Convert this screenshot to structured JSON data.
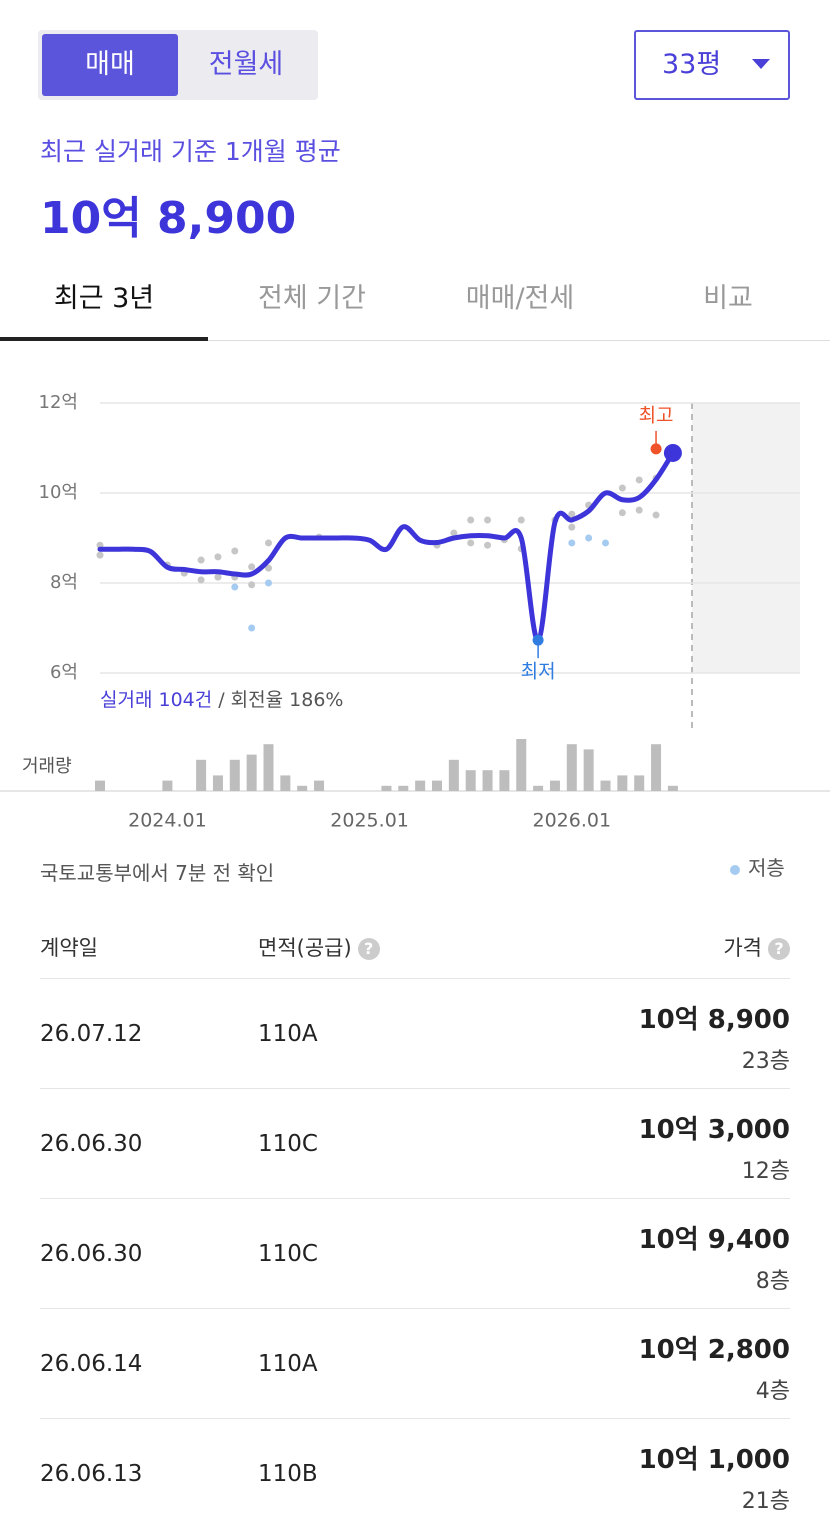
{
  "toggle": {
    "options": [
      "매매",
      "전월세"
    ],
    "active": 0
  },
  "size_selector": "33평",
  "summary": {
    "label": "최근 실거래 기준 1개월 평균",
    "price": "10억 8,900"
  },
  "tabs": {
    "items": [
      "최근 3년",
      "전체 기간",
      "매매/전세",
      "비교"
    ],
    "active": 0
  },
  "chart_data": {
    "type": "line",
    "x": [
      "2023.09",
      "2023.10",
      "2023.11",
      "2023.12",
      "2024.01",
      "2024.02",
      "2024.03",
      "2024.04",
      "2024.05",
      "2024.06",
      "2024.07",
      "2024.08",
      "2024.09",
      "2024.10",
      "2024.11",
      "2024.12",
      "2025.01",
      "2025.02",
      "2025.03",
      "2025.04",
      "2025.05",
      "2025.06",
      "2025.07",
      "2025.08",
      "2025.09",
      "2025.10",
      "2025.11",
      "2025.12",
      "2026.01",
      "2026.02",
      "2026.03",
      "2026.04",
      "2026.05",
      "2026.06",
      "2026.07"
    ],
    "values": [
      8.75,
      8.75,
      8.75,
      8.7,
      8.35,
      8.3,
      8.25,
      8.25,
      8.2,
      8.2,
      8.5,
      9.0,
      9.0,
      9.0,
      9.0,
      9.0,
      8.95,
      8.75,
      9.25,
      8.95,
      8.9,
      9.0,
      9.05,
      9.05,
      9.0,
      9.0,
      6.73,
      9.35,
      9.4,
      9.6,
      10.0,
      9.85,
      9.9,
      10.3,
      10.89
    ],
    "color": "#3d35d9",
    "points": {
      "color": "#c6c6c6",
      "x": [
        "2023.09",
        "2023.09",
        "2024.01",
        "2024.02",
        "2024.03",
        "2024.03",
        "2024.04",
        "2024.04",
        "2024.05",
        "2024.05",
        "2024.06",
        "2024.06",
        "2024.07",
        "2024.07",
        "2024.10",
        "2025.05",
        "2025.06",
        "2025.07",
        "2025.07",
        "2025.08",
        "2025.08",
        "2025.09",
        "2025.10",
        "2025.10",
        "2025.12",
        "2026.01",
        "2026.01",
        "2026.02",
        "2026.04",
        "2026.04",
        "2026.05",
        "2026.05",
        "2026.06",
        "2026.06"
      ],
      "values": [
        8.84,
        8.62,
        8.4,
        8.22,
        8.51,
        8.07,
        8.58,
        8.13,
        8.71,
        8.13,
        8.36,
        7.96,
        8.89,
        8.33,
        9.02,
        8.84,
        9.11,
        9.4,
        8.89,
        9.4,
        8.84,
        8.96,
        9.4,
        8.76,
        9.4,
        9.53,
        9.24,
        9.73,
        10.11,
        9.56,
        10.29,
        9.62,
        10.33,
        9.51
      ]
    },
    "low_floor": {
      "name": "저층",
      "color": "#a6cbf0",
      "x": [
        "2024.05",
        "2024.06",
        "2024.07",
        "2026.01",
        "2026.02",
        "2026.03"
      ],
      "values": [
        7.91,
        7.0,
        8.0,
        8.89,
        9.0,
        8.89
      ]
    },
    "annotations": [
      {
        "text": "최고",
        "x": "2026.06",
        "value": 10.98,
        "color": "#f0532a"
      },
      {
        "text": "최저",
        "x": "2025.11",
        "value": 6.73,
        "color": "#2f7de1"
      }
    ],
    "volume": {
      "label": "거래량",
      "color": "#bdbdbd",
      "values": [
        2,
        0,
        0,
        0,
        2,
        0,
        6,
        3,
        6,
        7,
        9,
        3,
        1,
        2,
        0,
        0,
        0,
        1,
        1,
        2,
        2,
        6,
        4,
        4,
        4,
        10,
        1,
        2,
        9,
        8,
        2,
        3,
        3,
        9,
        1
      ]
    },
    "ylim": [
      6,
      12
    ],
    "yticks": [
      {
        "value": 6,
        "label": "6억"
      },
      {
        "value": 8,
        "label": "8억"
      },
      {
        "value": 10,
        "label": "10억"
      },
      {
        "value": 12,
        "label": "12억"
      }
    ],
    "xticks": [
      "2024.01",
      "2025.01",
      "2026.01"
    ],
    "grid": true,
    "deal_count": "실거래 104건",
    "turnover": "/ 회전율 186%"
  },
  "source_note": "국토교통부에서 7분 전 확인",
  "table": {
    "headers": [
      "계약일",
      "면적(공급)",
      "가격"
    ],
    "rows": [
      [
        "26.07.12",
        "110A",
        "10억 8,900",
        "23층"
      ],
      [
        "26.06.30",
        "110C",
        "10억 3,000",
        "12층"
      ],
      [
        "26.06.30",
        "110C",
        "10억 9,400",
        "8층"
      ],
      [
        "26.06.14",
        "110A",
        "10억 2,800",
        "4층"
      ],
      [
        "26.06.13",
        "110B",
        "10억 1,000",
        "21층"
      ]
    ]
  }
}
